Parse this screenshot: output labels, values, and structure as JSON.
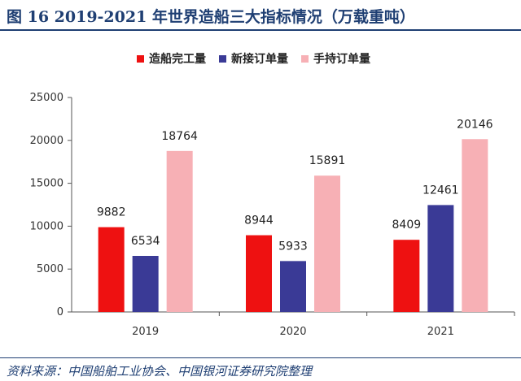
{
  "title": "图 16 2019-2021 年世界造船三大指标情况（万载重吨）",
  "source": "资料来源：中国船舶工业协会、中国银河证券研究院整理",
  "chart_data": {
    "type": "bar",
    "categories": [
      "2019",
      "2020",
      "2021"
    ],
    "series": [
      {
        "name": "造船完工量",
        "color": "#ee1111",
        "values": [
          9882,
          8944,
          8409
        ]
      },
      {
        "name": "新接订单量",
        "color": "#3a3a96",
        "values": [
          6534,
          5933,
          12461
        ]
      },
      {
        "name": "手持订单量",
        "color": "#f7b0b5",
        "values": [
          18764,
          15891,
          20146
        ]
      }
    ],
    "ylim": [
      0,
      25000
    ],
    "yticks": [
      "0",
      "5000",
      "10000",
      "15000",
      "20000",
      "25000"
    ],
    "grid": false,
    "legend": "top"
  }
}
